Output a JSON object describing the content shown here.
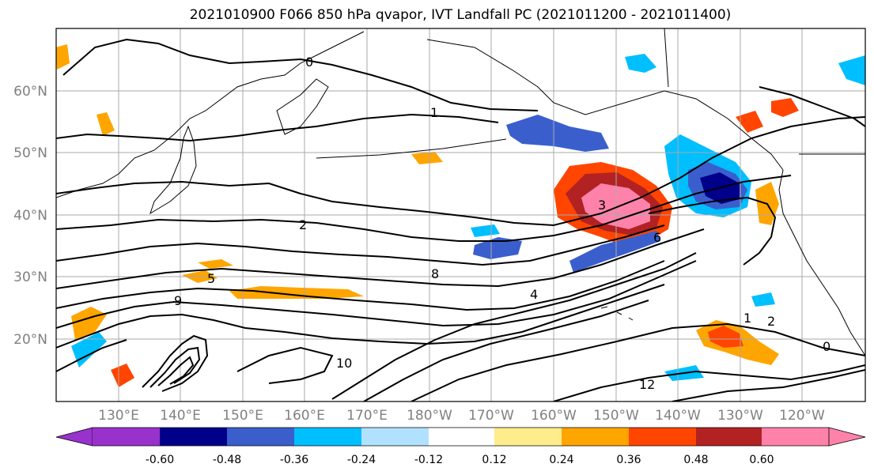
{
  "figure": {
    "title": "2021010900 F066 850 hPa qvapor, IVT Landfall PC (2021011200 - 2021011400)"
  },
  "map": {
    "lat_ticks": [
      "20°N",
      "30°N",
      "40°N",
      "50°N",
      "60°N"
    ],
    "lon_ticks": [
      "130°E",
      "140°E",
      "150°E",
      "160°E",
      "170°E",
      "180°W",
      "170°W",
      "160°W",
      "150°W",
      "140°W",
      "130°W",
      "120°W"
    ],
    "contour_labels": [
      "0",
      "1",
      "2",
      "3",
      "5",
      "8",
      "9",
      "10",
      "12",
      "6",
      "4",
      "0",
      "2",
      "1"
    ]
  },
  "colorbar": {
    "tick_labels": [
      "-0.60",
      "-0.48",
      "-0.36",
      "-0.24",
      "-0.12",
      "0.12",
      "0.24",
      "0.36",
      "0.48",
      "0.60"
    ],
    "colors": [
      "#9932cc",
      "#00008b",
      "#3a5fcd",
      "#00bfff",
      "#b0e2ff",
      "#ffffff",
      "#ffec8b",
      "#ffa500",
      "#ff4500",
      "#b22222",
      "#ff82ab"
    ]
  }
}
